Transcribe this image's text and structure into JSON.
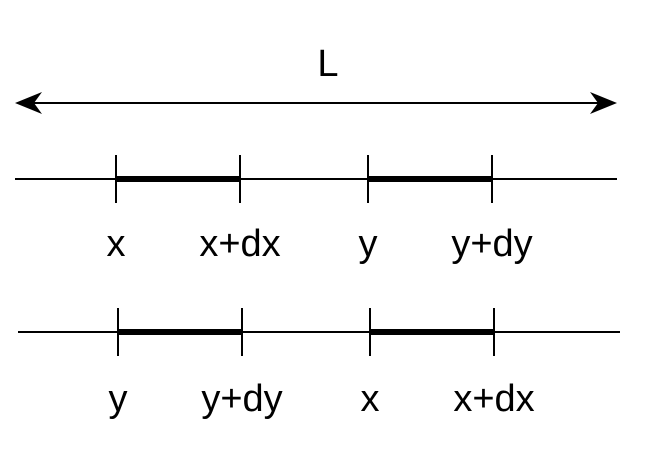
{
  "colors": {
    "stroke": "#000000",
    "background": "#ffffff"
  },
  "length_label": "L",
  "row1": {
    "labels": [
      "x",
      "x+dx",
      "y",
      "y+dy"
    ]
  },
  "row2": {
    "labels": [
      "y",
      "y+dy",
      "x",
      "x+dx"
    ]
  }
}
